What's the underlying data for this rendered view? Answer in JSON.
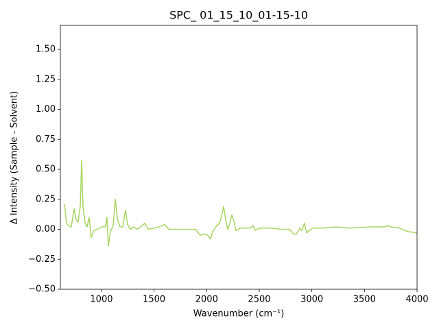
{
  "chart_data": {
    "type": "line",
    "title": "SPC_ 01_15_10_01-15-10",
    "x_label": "Wavenumber (cm⁻¹)",
    "y_label": "Δ Intensity (Sample - Solvent)",
    "color": "#a8d561",
    "x": [
      648,
      667,
      687,
      713,
      739,
      759,
      778,
      798,
      811,
      824,
      844,
      863,
      883,
      902,
      928,
      961,
      1000,
      1039,
      1052,
      1065,
      1085,
      1111,
      1131,
      1150,
      1176,
      1202,
      1228,
      1248,
      1274,
      1306,
      1339,
      1372,
      1411,
      1444,
      1502,
      1548,
      1600,
      1639,
      1730,
      1893,
      1939,
      1978,
      2011,
      2037,
      2057,
      2096,
      2122,
      2142,
      2161,
      2181,
      2200,
      2220,
      2239,
      2259,
      2278,
      2318,
      2415,
      2441,
      2461,
      2500,
      2611,
      2709,
      2787,
      2826,
      2852,
      2885,
      2904,
      2930,
      2950,
      2976,
      3009,
      3100,
      3230,
      3361,
      3557,
      3687,
      3720,
      3752,
      3831,
      3883,
      3922,
      4000
    ],
    "values": [
      0.21,
      0.05,
      0.03,
      0.02,
      0.17,
      0.08,
      0.06,
      0.19,
      0.57,
      0.19,
      0.05,
      0.02,
      0.1,
      -0.07,
      -0.01,
      0.0,
      0.02,
      0.02,
      0.1,
      -0.14,
      -0.02,
      0.03,
      0.25,
      0.09,
      0.02,
      0.02,
      0.16,
      0.04,
      0.0,
      0.02,
      0.0,
      0.02,
      0.05,
      0.0,
      0.01,
      0.02,
      0.04,
      0.0,
      0.0,
      0.0,
      -0.05,
      -0.04,
      -0.05,
      -0.08,
      -0.02,
      0.03,
      0.05,
      0.11,
      0.19,
      0.08,
      0.0,
      0.05,
      0.12,
      0.07,
      -0.01,
      0.01,
      0.01,
      0.03,
      -0.01,
      0.01,
      0.01,
      0.0,
      0.0,
      -0.04,
      -0.04,
      0.01,
      -0.01,
      0.05,
      -0.03,
      -0.01,
      0.01,
      0.01,
      0.02,
      0.01,
      0.02,
      0.02,
      0.03,
      0.02,
      0.01,
      -0.01,
      -0.02,
      -0.03
    ],
    "xlim": [
      609,
      4000
    ],
    "ylim": [
      -0.5,
      1.7
    ],
    "xticks": [
      1000,
      1500,
      2000,
      2500,
      3000,
      3500,
      4000
    ],
    "yticks": [
      {
        "value": -0.5,
        "label": "−0.50"
      },
      {
        "value": -0.25,
        "label": "−0.25"
      },
      {
        "value": 0,
        "label": "0.00"
      },
      {
        "value": 0.25,
        "label": "0.25"
      },
      {
        "value": 0.5,
        "label": "0.50"
      },
      {
        "value": 0.75,
        "label": "0.75"
      },
      {
        "value": 1.0,
        "label": "1.00"
      },
      {
        "value": 1.25,
        "label": "1.25"
      },
      {
        "value": 1.5,
        "label": "1.50"
      }
    ]
  }
}
